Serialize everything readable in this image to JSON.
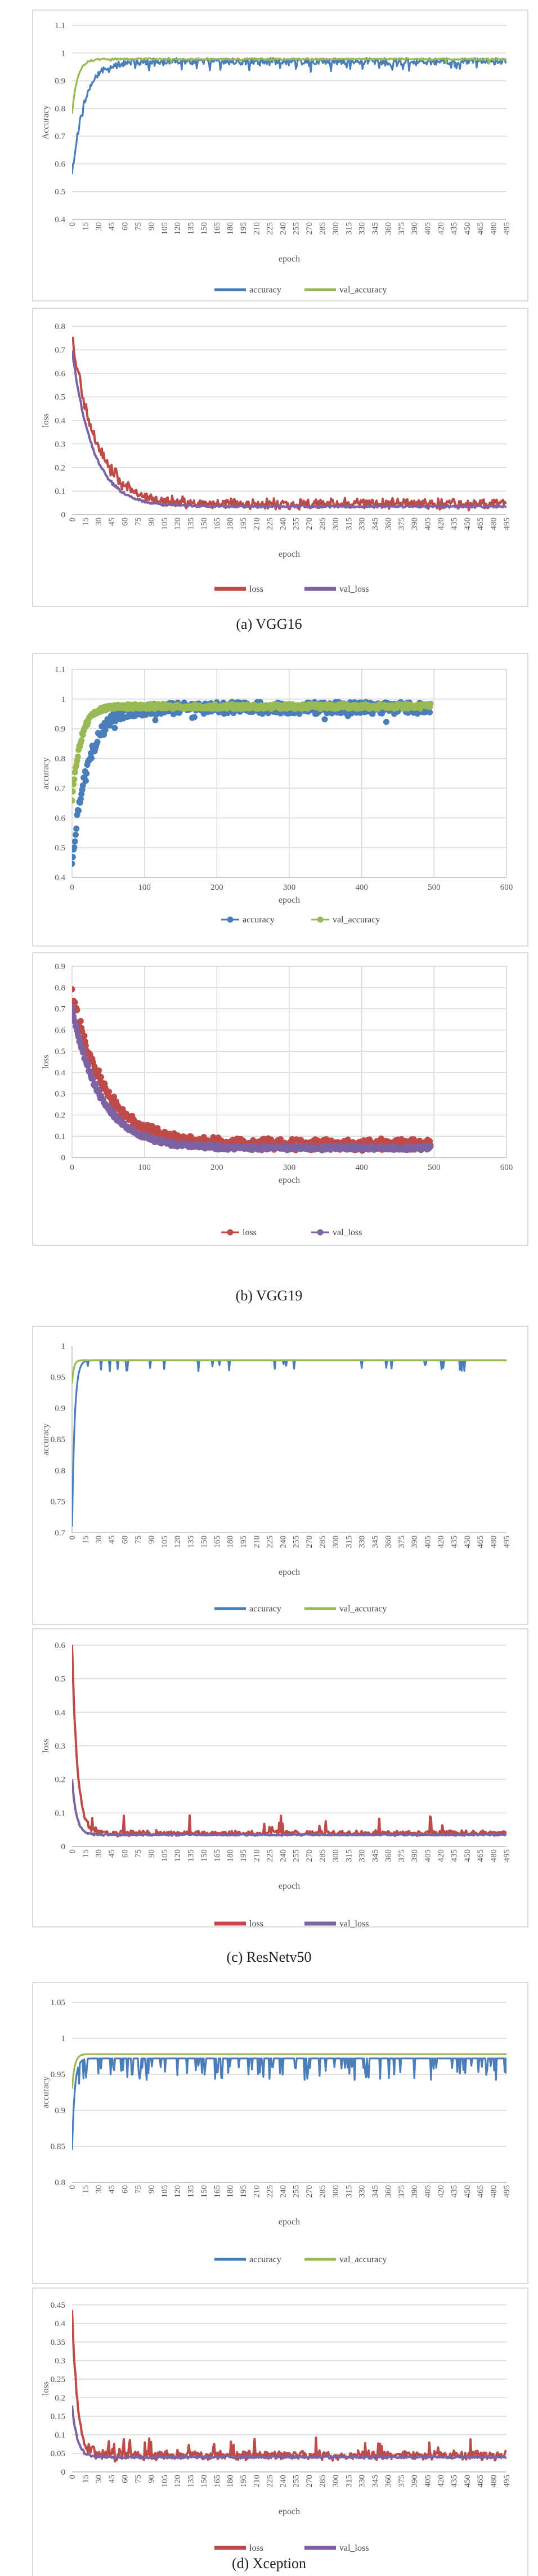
{
  "colors": {
    "accuracy": "#4a7ebb",
    "val_accuracy": "#98b954",
    "loss": "#be4b48",
    "val_loss": "#7e62a1"
  },
  "subfigures": [
    {
      "caption": "(a) VGG16"
    },
    {
      "caption": "(b) VGG19"
    },
    {
      "caption": "(c) ResNetv50"
    },
    {
      "caption": "(d) Xception"
    }
  ],
  "chart_data": [
    {
      "type": "line",
      "model": "VGG16",
      "metric": "accuracy",
      "xlabel": "epoch",
      "ylabel": "Accuracy",
      "ylim": [
        0.4,
        1.1
      ],
      "yticks": [
        "0.4",
        "0.5",
        "0.6",
        "0.7",
        "0.8",
        "0.9",
        "1",
        "1.1"
      ],
      "x_tick_step": 15,
      "x_last_epoch": 495,
      "grid": "horizontal",
      "legend": "bottom",
      "series": [
        {
          "name": "accuracy",
          "start": 0.56,
          "plateau": 0.97,
          "rise_epochs": 14,
          "spread": 0.012,
          "dip_frequency": 0.09,
          "dip_size": 0.02
        },
        {
          "name": "val_accuracy",
          "start": 0.78,
          "plateau": 0.978,
          "rise_epochs": 6,
          "spread": 0.003,
          "dip_frequency": 0.02,
          "dip_size": 0.01
        }
      ]
    },
    {
      "type": "line",
      "model": "VGG16",
      "metric": "loss",
      "xlabel": "epoch",
      "ylabel": "loss",
      "ylim": [
        0,
        0.8
      ],
      "yticks": [
        "0",
        "0.1",
        "0.2",
        "0.3",
        "0.4",
        "0.5",
        "0.6",
        "0.7",
        "0.8"
      ],
      "x_tick_step": 15,
      "x_last_epoch": 495,
      "grid": "horizontal",
      "legend": "bottom",
      "series": [
        {
          "name": "loss",
          "start": 0.76,
          "plateau": 0.045,
          "decay_epochs": 28,
          "spread": 0.018,
          "dip_frequency": 0.0,
          "dip_size": 0.0
        },
        {
          "name": "val_loss",
          "start": 0.7,
          "plateau": 0.035,
          "decay_epochs": 24,
          "spread": 0.004,
          "dip_frequency": 0.0,
          "dip_size": 0.0
        }
      ]
    },
    {
      "type": "scatter",
      "model": "VGG19",
      "metric": "accuracy",
      "xlabel": "epoch",
      "ylabel": "accuracy",
      "ylim": [
        0.4,
        1.1
      ],
      "xlim": [
        0,
        600
      ],
      "yticks": [
        "0.4",
        "0.5",
        "0.6",
        "0.7",
        "0.8",
        "0.9",
        "1",
        "1.1"
      ],
      "xticks": [
        "0",
        "100",
        "200",
        "300",
        "400",
        "500",
        "600"
      ],
      "grid": "both",
      "legend": "bottom",
      "series": [
        {
          "name": "accuracy",
          "start": 0.45,
          "plateau": 0.97,
          "rise_epochs": 22,
          "spread": 0.02,
          "dip_frequency": 0.05,
          "dip_size": 0.02
        },
        {
          "name": "val_accuracy",
          "start": 0.66,
          "plateau": 0.975,
          "rise_epochs": 12,
          "spread": 0.008,
          "dip_frequency": 0.0,
          "dip_size": 0.0
        }
      ]
    },
    {
      "type": "scatter",
      "model": "VGG19",
      "metric": "loss",
      "xlabel": "epoch",
      "ylabel": "loss",
      "ylim": [
        0,
        0.9
      ],
      "xlim": [
        0,
        600
      ],
      "yticks": [
        "0",
        "0.1",
        "0.2",
        "0.3",
        "0.4",
        "0.5",
        "0.6",
        "0.7",
        "0.8",
        "0.9"
      ],
      "xticks": [
        "0",
        "100",
        "200",
        "300",
        "400",
        "500",
        "600"
      ],
      "grid": "both",
      "legend": "bottom",
      "series": [
        {
          "name": "loss",
          "start": 0.78,
          "plateau": 0.06,
          "decay_epochs": 45,
          "spread": 0.02,
          "dip_frequency": 0.0,
          "dip_size": 0.0
        },
        {
          "name": "val_loss",
          "start": 0.7,
          "plateau": 0.045,
          "decay_epochs": 40,
          "spread": 0.008,
          "dip_frequency": 0.0,
          "dip_size": 0.0
        }
      ]
    },
    {
      "type": "line",
      "model": "ResNetv50",
      "metric": "accuracy",
      "xlabel": "epoch",
      "ylabel": "accuracy",
      "ylim": [
        0.7,
        1
      ],
      "yticks": [
        "0.7",
        "0.75",
        "0.8",
        "0.85",
        "0.9",
        "0.95",
        "1"
      ],
      "x_tick_step": 15,
      "x_last_epoch": 495,
      "grid": "none",
      "legend": "bottom",
      "series": [
        {
          "name": "accuracy",
          "start": 0.71,
          "plateau": 0.977,
          "rise_epochs": 3,
          "spread": 0.0,
          "dip_frequency": 0.06,
          "dip_size": 0.012
        },
        {
          "name": "val_accuracy",
          "start": 0.94,
          "plateau": 0.977,
          "rise_epochs": 2,
          "spread": 0.0,
          "dip_frequency": 0.0,
          "dip_size": 0.0
        }
      ]
    },
    {
      "type": "line",
      "model": "ResNetv50",
      "metric": "loss",
      "xlabel": "epoch",
      "ylabel": "loss",
      "ylim": [
        0,
        0.6
      ],
      "yticks": [
        "0",
        "0.1",
        "0.2",
        "0.3",
        "0.4",
        "0.5",
        "0.6"
      ],
      "x_tick_step": 15,
      "x_last_epoch": 495,
      "grid": "horizontal",
      "legend": "bottom",
      "series": [
        {
          "name": "loss",
          "start": 0.6,
          "plateau": 0.04,
          "decay_epochs": 6,
          "spread": 0.006,
          "dip_frequency": 0.03,
          "dip_size": 0.035
        },
        {
          "name": "val_loss",
          "start": 0.2,
          "plateau": 0.035,
          "decay_epochs": 5,
          "spread": 0.002,
          "dip_frequency": 0.0,
          "dip_size": 0.0
        }
      ]
    },
    {
      "type": "line",
      "model": "Xception",
      "metric": "accuracy",
      "xlabel": "epoch",
      "ylabel": "accuracy",
      "ylim": [
        0.8,
        1.05
      ],
      "yticks": [
        "0.8",
        "0.85",
        "0.9",
        "0.95",
        "1",
        "1.05"
      ],
      "x_tick_step": 15,
      "x_last_epoch": 495,
      "grid": "horizontal",
      "legend": "bottom",
      "series": [
        {
          "name": "accuracy",
          "start": 0.845,
          "plateau": 0.972,
          "rise_epochs": 3,
          "spread": 0.0,
          "dip_frequency": 0.2,
          "dip_size": 0.02
        },
        {
          "name": "val_accuracy",
          "start": 0.93,
          "plateau": 0.978,
          "rise_epochs": 3,
          "spread": 0.0,
          "dip_frequency": 0.0,
          "dip_size": 0.0
        }
      ]
    },
    {
      "type": "line",
      "model": "Xception",
      "metric": "loss",
      "xlabel": "epoch",
      "ylabel": "loss",
      "ylim": [
        0,
        0.45
      ],
      "yticks": [
        "0",
        "0.05",
        "0.1",
        "0.15",
        "0.2",
        "0.25",
        "0.3",
        "0.35",
        "0.4",
        "0.45"
      ],
      "x_tick_step": 15,
      "x_last_epoch": 495,
      "grid": "horizontal",
      "legend": "bottom",
      "series": [
        {
          "name": "loss",
          "start": 0.44,
          "plateau": 0.045,
          "decay_epochs": 6,
          "spread": 0.01,
          "dip_frequency": 0.06,
          "dip_size": 0.03
        },
        {
          "name": "val_loss",
          "start": 0.18,
          "plateau": 0.04,
          "decay_epochs": 6,
          "spread": 0.003,
          "dip_frequency": 0.0,
          "dip_size": 0.0
        }
      ]
    }
  ]
}
